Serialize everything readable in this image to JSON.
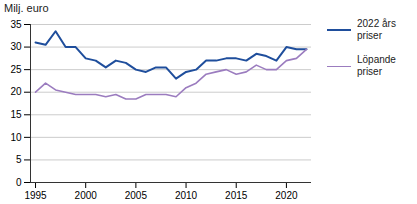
{
  "chart_data": {
    "type": "line",
    "y_label": "Milj. euro",
    "x": [
      1995,
      1996,
      1997,
      1998,
      1999,
      2000,
      2001,
      2002,
      2003,
      2004,
      2005,
      2006,
      2007,
      2008,
      2009,
      2010,
      2011,
      2012,
      2013,
      2014,
      2015,
      2016,
      2017,
      2018,
      2019,
      2020,
      2021,
      2022
    ],
    "series": [
      {
        "name": "2022 års\npriser",
        "color": "#1f4e9c",
        "values": [
          31.0,
          30.5,
          33.5,
          30.0,
          30.0,
          27.5,
          27.0,
          25.5,
          27.0,
          26.5,
          25.0,
          24.5,
          25.5,
          25.5,
          23.0,
          24.5,
          25.0,
          27.0,
          27.0,
          27.5,
          27.5,
          27.0,
          28.5,
          28.0,
          27.0,
          30.0,
          29.5,
          29.5
        ]
      },
      {
        "name": "Löpande\npriser",
        "color": "#9b7cbf",
        "values": [
          20.0,
          22.0,
          20.5,
          20.0,
          19.5,
          19.5,
          19.5,
          19.0,
          19.5,
          18.5,
          18.5,
          19.5,
          19.5,
          19.5,
          19.0,
          21.0,
          22.0,
          24.0,
          24.5,
          25.0,
          24.0,
          24.5,
          26.0,
          25.0,
          25.0,
          27.0,
          27.5,
          29.5
        ]
      }
    ],
    "xlim": [
      1994.5,
      2022.5
    ],
    "xticks": [
      1995,
      2000,
      2005,
      2010,
      2015,
      2020
    ],
    "ylim": [
      0,
      35
    ],
    "yticks": [
      0,
      5,
      10,
      15,
      20,
      25,
      30,
      35
    ],
    "grid": true,
    "legend": "right"
  }
}
